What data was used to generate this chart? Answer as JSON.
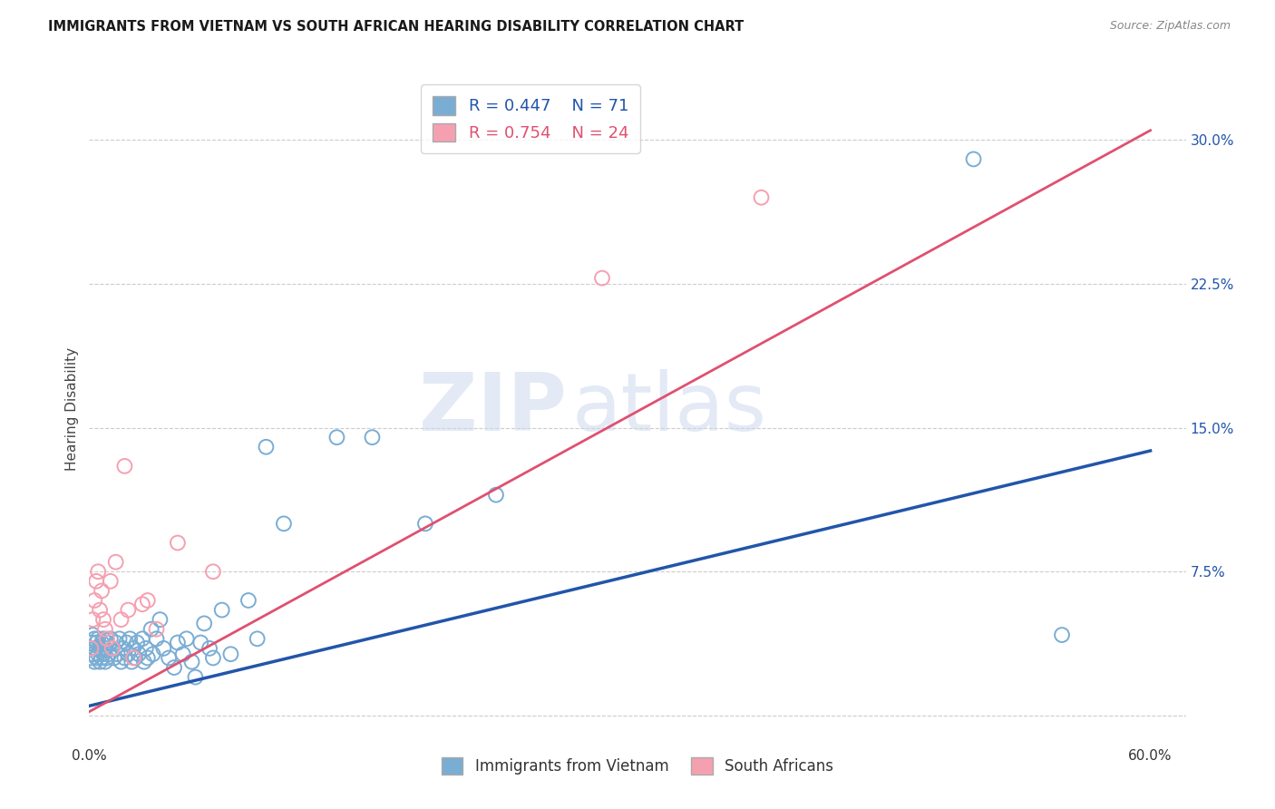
{
  "title": "IMMIGRANTS FROM VIETNAM VS SOUTH AFRICAN HEARING DISABILITY CORRELATION CHART",
  "source": "Source: ZipAtlas.com",
  "ylabel": "Hearing Disability",
  "xlim": [
    0.0,
    0.62
  ],
  "ylim": [
    -0.015,
    0.335
  ],
  "yticks": [
    0.0,
    0.075,
    0.15,
    0.225,
    0.3
  ],
  "ytick_labels": [
    "",
    "7.5%",
    "15.0%",
    "22.5%",
    "30.0%"
  ],
  "xticks": [
    0.0,
    0.1,
    0.2,
    0.3,
    0.4,
    0.5,
    0.6
  ],
  "xtick_labels": [
    "0.0%",
    "",
    "",
    "",
    "",
    "",
    "60.0%"
  ],
  "grid_color": "#cccccc",
  "background_color": "#ffffff",
  "blue_color": "#7aadd4",
  "pink_color": "#f5a0b0",
  "blue_line_color": "#2255aa",
  "pink_line_color": "#e05070",
  "legend_label_blue": "Immigrants from Vietnam",
  "legend_label_pink": "South Africans",
  "watermark_zip": "ZIP",
  "watermark_atlas": "atlas",
  "blue_trendline": [
    [
      0.0,
      0.005
    ],
    [
      0.6,
      0.138
    ]
  ],
  "pink_trendline": [
    [
      0.0,
      0.002
    ],
    [
      0.6,
      0.305
    ]
  ],
  "blue_scatter_x": [
    0.001,
    0.001,
    0.002,
    0.002,
    0.003,
    0.003,
    0.003,
    0.004,
    0.004,
    0.005,
    0.005,
    0.006,
    0.006,
    0.007,
    0.007,
    0.008,
    0.008,
    0.009,
    0.009,
    0.01,
    0.01,
    0.011,
    0.012,
    0.013,
    0.014,
    0.015,
    0.016,
    0.017,
    0.018,
    0.019,
    0.02,
    0.021,
    0.022,
    0.023,
    0.024,
    0.025,
    0.026,
    0.027,
    0.028,
    0.03,
    0.031,
    0.032,
    0.033,
    0.035,
    0.036,
    0.038,
    0.04,
    0.042,
    0.045,
    0.048,
    0.05,
    0.053,
    0.055,
    0.058,
    0.06,
    0.063,
    0.065,
    0.068,
    0.07,
    0.075,
    0.08,
    0.09,
    0.095,
    0.1,
    0.11,
    0.14,
    0.16,
    0.19,
    0.23,
    0.5,
    0.55
  ],
  "blue_scatter_y": [
    0.03,
    0.038,
    0.032,
    0.042,
    0.028,
    0.035,
    0.04,
    0.03,
    0.038,
    0.032,
    0.04,
    0.028,
    0.035,
    0.03,
    0.038,
    0.032,
    0.04,
    0.028,
    0.035,
    0.03,
    0.038,
    0.032,
    0.04,
    0.035,
    0.03,
    0.038,
    0.032,
    0.04,
    0.028,
    0.035,
    0.03,
    0.038,
    0.032,
    0.04,
    0.028,
    0.035,
    0.03,
    0.038,
    0.032,
    0.04,
    0.028,
    0.035,
    0.03,
    0.045,
    0.032,
    0.04,
    0.05,
    0.035,
    0.03,
    0.025,
    0.038,
    0.032,
    0.04,
    0.028,
    0.02,
    0.038,
    0.048,
    0.035,
    0.03,
    0.055,
    0.032,
    0.06,
    0.04,
    0.14,
    0.1,
    0.145,
    0.145,
    0.1,
    0.115,
    0.29,
    0.042
  ],
  "pink_scatter_x": [
    0.001,
    0.002,
    0.003,
    0.004,
    0.005,
    0.006,
    0.007,
    0.008,
    0.009,
    0.01,
    0.012,
    0.013,
    0.015,
    0.018,
    0.02,
    0.022,
    0.025,
    0.03,
    0.033,
    0.038,
    0.05,
    0.07,
    0.29,
    0.38
  ],
  "pink_scatter_y": [
    0.035,
    0.05,
    0.06,
    0.07,
    0.075,
    0.055,
    0.065,
    0.05,
    0.045,
    0.04,
    0.07,
    0.035,
    0.08,
    0.05,
    0.13,
    0.055,
    0.03,
    0.058,
    0.06,
    0.045,
    0.09,
    0.075,
    0.228,
    0.27
  ]
}
